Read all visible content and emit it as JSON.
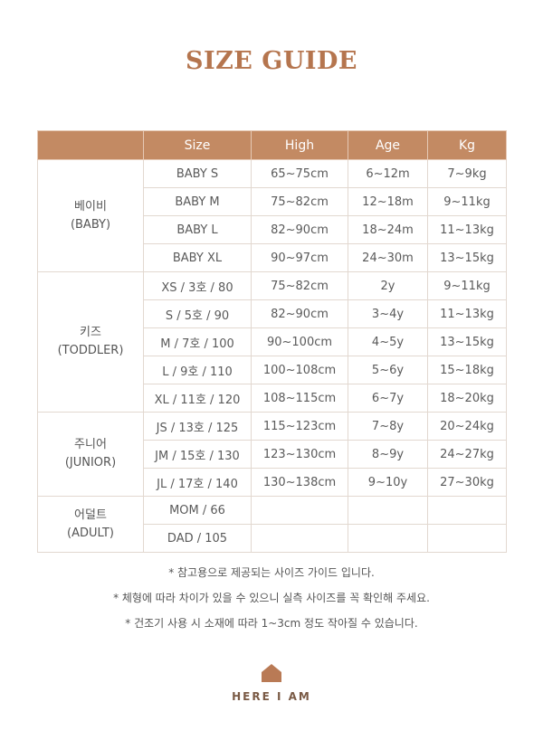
{
  "title": "SIZE GUIDE",
  "table": {
    "headers": [
      "Size",
      "High",
      "Age",
      "Kg"
    ],
    "groups": [
      {
        "name": "베이비",
        "sub": "(BABY)",
        "rows": [
          [
            "BABY S",
            "65~75cm",
            "6~12m",
            "7~9kg"
          ],
          [
            "BABY M",
            "75~82cm",
            "12~18m",
            "9~11kg"
          ],
          [
            "BABY L",
            "82~90cm",
            "18~24m",
            "11~13kg"
          ],
          [
            "BABY XL",
            "90~97cm",
            "24~30m",
            "13~15kg"
          ]
        ]
      },
      {
        "name": "키즈",
        "sub": "(TODDLER)",
        "rows": [
          [
            "XS / 3호 / 80",
            "75~82cm",
            "2y",
            "9~11kg"
          ],
          [
            "S / 5호 / 90",
            "82~90cm",
            "3~4y",
            "11~13kg"
          ],
          [
            "M / 7호 / 100",
            "90~100cm",
            "4~5y",
            "13~15kg"
          ],
          [
            "L / 9호 / 110",
            "100~108cm",
            "5~6y",
            "15~18kg"
          ],
          [
            "XL / 11호 / 120",
            "108~115cm",
            "6~7y",
            "18~20kg"
          ]
        ]
      },
      {
        "name": "주니어",
        "sub": "(JUNIOR)",
        "rows": [
          [
            "JS / 13호 / 125",
            "115~123cm",
            "7~8y",
            "20~24kg"
          ],
          [
            "JM / 15호 / 130",
            "123~130cm",
            "8~9y",
            "24~27kg"
          ],
          [
            "JL / 17호 / 140",
            "130~138cm",
            "9~10y",
            "27~30kg"
          ]
        ]
      },
      {
        "name": "어덜트",
        "sub": "(ADULT)",
        "rows": [
          [
            "MOM / 66",
            "",
            "",
            ""
          ],
          [
            "DAD / 105",
            "",
            "",
            ""
          ]
        ]
      }
    ]
  },
  "notes": [
    "* 참고용으로 제공되는 사이즈 가이드 입니다.",
    "* 체형에 따라 차이가 있을 수 있으니 실측 사이즈를 꼭 확인해 주세요.",
    "* 건조기 사용 시 소재에 따라 1~3cm 정도 작아질 수 있습니다."
  ],
  "brand": {
    "name": "HERE I AM",
    "logo_color": "#b97a55"
  },
  "colors": {
    "title": "#b5754e",
    "header_bg": "#c38a63"
  }
}
